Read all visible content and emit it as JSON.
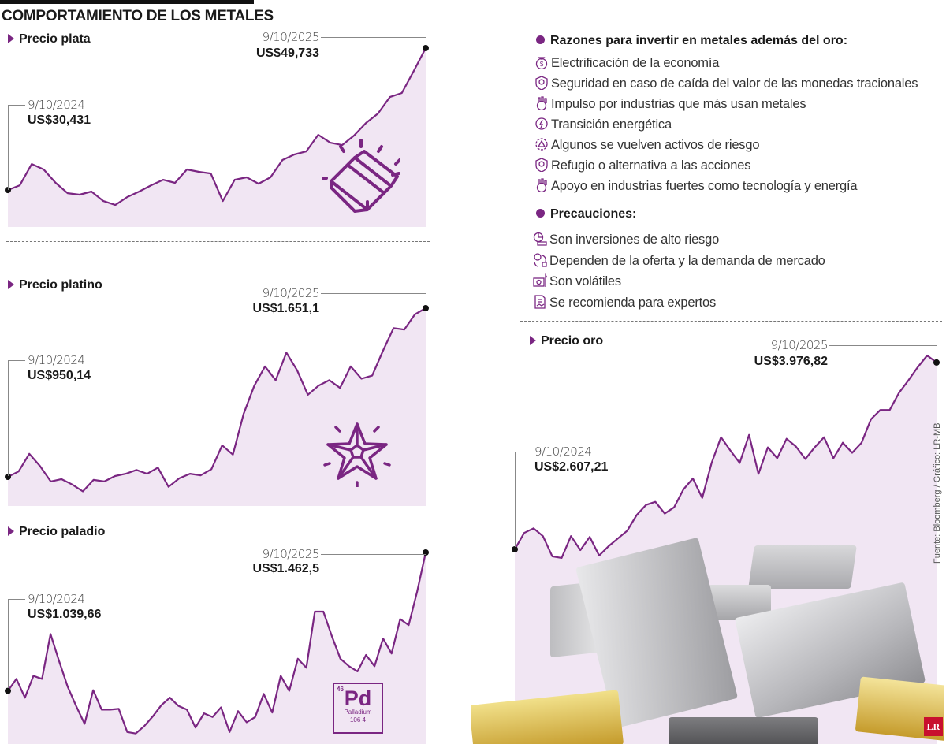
{
  "header": {
    "title": "COMPORTAMIENTO DE LOS METALES"
  },
  "colors": {
    "line": "#7a2682",
    "fill": "#f1e6f3",
    "accent": "#7a2682",
    "logo": "#c8102e"
  },
  "reasons": {
    "heading": "Razones para invertir en metales además del oro:",
    "items": [
      {
        "icon": "money-bag-icon",
        "label": "Electrificación de la economía"
      },
      {
        "icon": "shield-icon",
        "label": "Seguridad en caso de caída del valor de las monedas tracionales"
      },
      {
        "icon": "industry-gear-icon",
        "label": "Impulso por industrias que más usan metales"
      },
      {
        "icon": "energy-cycle-icon",
        "label": "Transición energética"
      },
      {
        "icon": "gear-warning-icon",
        "label": "Algunos se vuelven activos de riesgo"
      },
      {
        "icon": "shield-icon",
        "label": "Refugio o alternativa a las acciones"
      },
      {
        "icon": "industry-gear-icon",
        "label": "Apoyo en industrias fuertes como tecnología y energía"
      }
    ]
  },
  "precautions": {
    "heading": "Precauciones:",
    "items": [
      {
        "icon": "debt-chart-icon",
        "label": "Son inversiones de alto riesgo"
      },
      {
        "icon": "money-exchange-icon",
        "label": "Dependen de la oferta y la demanda de mercado"
      },
      {
        "icon": "banknote-arrow-icon",
        "label": "Son volátiles"
      },
      {
        "icon": "document-handshake-icon",
        "label": "Se recomienda para expertos"
      }
    ]
  },
  "element_tile": {
    "number": "46",
    "symbol": "Pd",
    "name": "Palladium",
    "mass": "106 4"
  },
  "source": "Fuente: Bloomberg / Gráfico: LR-MB",
  "logo": "LR",
  "chart_data": [
    {
      "type": "area",
      "title": "Precio plata",
      "x_start": "9/10/2024",
      "x_end": "9/10/2025",
      "start_label": "US$30,431",
      "end_label": "US$49,733",
      "ylim": [
        25.4,
        49.733
      ],
      "grid": false,
      "icon": "gold-bars-icon",
      "values": [
        30.43,
        31.07,
        33.97,
        33.22,
        31.4,
        30.0,
        29.79,
        30.22,
        28.93,
        28.39,
        29.47,
        30.22,
        31.07,
        31.82,
        31.4,
        33.22,
        32.9,
        32.68,
        28.93,
        31.82,
        32.15,
        31.29,
        32.15,
        34.51,
        35.26,
        35.69,
        37.94,
        36.86,
        36.54,
        37.83,
        39.55,
        40.83,
        43.08,
        43.62,
        46.62,
        49.733
      ]
    },
    {
      "type": "area",
      "title": "Precio platino",
      "x_start": "9/10/2024",
      "x_end": "9/10/2025",
      "start_label": "US$950,14",
      "end_label": "US$1.651,1",
      "ylim": [
        829,
        1651.1
      ],
      "grid": false,
      "icon": "star-icon",
      "values": [
        950.14,
        972.4,
        1045.7,
        994.7,
        931.0,
        940.6,
        918.3,
        889.6,
        937.4,
        931.0,
        953.3,
        962.9,
        978.8,
        962.9,
        988.4,
        908.7,
        943.8,
        962.9,
        956.5,
        982.0,
        1080.8,
        1042.5,
        1211.4,
        1329.3,
        1408.9,
        1351.6,
        1466.3,
        1393.0,
        1291.1,
        1329.3,
        1351.6,
        1319.7,
        1408.9,
        1357.9,
        1370.7,
        1472.7,
        1568.2,
        1561.9,
        1625.6,
        1651.1
      ]
    },
    {
      "type": "area",
      "title": "Precio paladio",
      "x_start": "9/10/2024",
      "x_end": "9/10/2025",
      "start_label": "US$1.039,66",
      "end_label": "US$1.462,5",
      "ylim": [
        877.4,
        1462.5
      ],
      "grid": false,
      "icon": "palladium-tile-icon",
      "values": [
        1039.66,
        1076.2,
        1019.1,
        1085.4,
        1076.2,
        1213.4,
        1131.1,
        1053.4,
        993.9,
        939.1,
        1041.9,
        982.5,
        982.5,
        984.8,
        914.0,
        909.4,
        932.2,
        961.9,
        996.2,
        1019.1,
        993.9,
        982.5,
        927.7,
        971.1,
        959.7,
        989.4,
        914.0,
        977.9,
        943.7,
        959.7,
        1030.5,
        973.4,
        1085.4,
        1039.7,
        1137.9,
        1110.5,
        1281.9,
        1281.9,
        1206.5,
        1137.9,
        1115.1,
        1099.1,
        1149.4,
        1115.1,
        1199.7,
        1153.9,
        1259.1,
        1240.8,
        1343.6,
        1462.5
      ]
    },
    {
      "type": "area",
      "title": "Precio oro",
      "x_start": "9/10/2024",
      "x_end": "9/10/2025",
      "start_label": "US$2.607,21",
      "end_label": "US$3.976,82",
      "ylim": [
        1180.5,
        4028.2
      ],
      "grid": false,
      "icon": "metal-bars-photo",
      "values": [
        2607.21,
        2727.1,
        2761.3,
        2704.2,
        2555.8,
        2544.4,
        2704.2,
        2601.5,
        2698.5,
        2561.6,
        2630.0,
        2687.1,
        2744.2,
        2858.3,
        2932.5,
        2955.3,
        2869.7,
        2915.4,
        3046.6,
        3126.5,
        2983.9,
        3240.6,
        3428.9,
        3332.0,
        3240.6,
        3446.1,
        3160.8,
        3354.8,
        3274.9,
        3417.6,
        3360.5,
        3269.2,
        3354.8,
        3428.9,
        3274.9,
        3389.0,
        3314.9,
        3389.0,
        3560.2,
        3628.7,
        3628.7,
        3754.3,
        3845.6,
        3942.6,
        4028.2,
        3976.82
      ]
    }
  ]
}
